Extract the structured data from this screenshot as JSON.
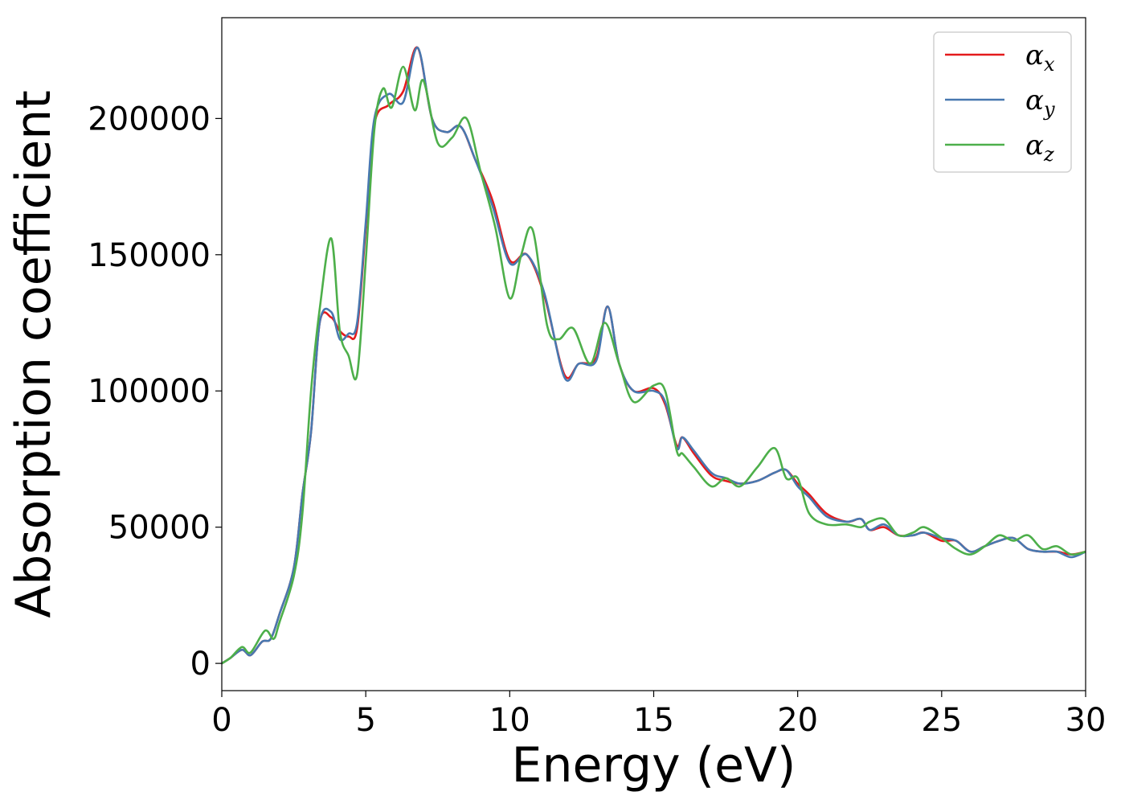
{
  "chart_data": {
    "type": "line",
    "xlabel": "Energy (eV)",
    "ylabel": "Absorption coefficient",
    "xlim": [
      0,
      30
    ],
    "ylim": [
      -10000,
      237000
    ],
    "xticks": [
      "0",
      "5",
      "10",
      "15",
      "20",
      "25",
      "30"
    ],
    "yticks": [
      "0",
      "50000",
      "100000",
      "150000",
      "200000"
    ],
    "grid": false,
    "legend_position": "top-right",
    "series": [
      {
        "name": "α_x",
        "base": "α",
        "sub": "x",
        "color": "#e41a1c",
        "x": [
          0,
          0.3,
          0.7,
          1.0,
          1.4,
          1.7,
          2.0,
          2.5,
          2.8,
          3.1,
          3.4,
          3.8,
          4.1,
          4.4,
          4.7,
          5.0,
          5.3,
          5.8,
          6.3,
          6.8,
          7.3,
          7.8,
          8.3,
          8.8,
          9.4,
          10.0,
          10.6,
          11.2,
          11.9,
          12.4,
          13.0,
          13.4,
          13.8,
          14.3,
          15.0,
          15.4,
          15.8,
          16.0,
          16.4,
          17.0,
          17.5,
          18.0,
          18.6,
          19.2,
          19.6,
          20.0,
          20.4,
          21.0,
          21.7,
          22.2,
          22.5,
          23.0,
          23.5,
          24.0,
          24.4,
          25.0,
          25.5,
          26.0,
          26.5,
          27.0,
          27.5,
          28.0,
          28.5,
          29.0,
          29.5,
          30.0
        ],
        "y": [
          0,
          2000,
          5000,
          3000,
          8000,
          9000,
          18000,
          35000,
          62000,
          85000,
          125000,
          127000,
          122000,
          120000,
          123000,
          160000,
          198000,
          205000,
          210000,
          226000,
          200000,
          195000,
          197000,
          185000,
          170000,
          148000,
          150000,
          135000,
          106000,
          110000,
          112000,
          131000,
          110000,
          100000,
          101000,
          95000,
          80000,
          83000,
          77000,
          69000,
          67000,
          66000,
          67000,
          70000,
          71000,
          66000,
          62000,
          55000,
          52000,
          53000,
          49000,
          50000,
          47000,
          47000,
          48000,
          45000,
          45000,
          41000,
          43000,
          45000,
          46000,
          42000,
          41000,
          41000,
          40000,
          41000
        ]
      },
      {
        "name": "α_y",
        "base": "α",
        "sub": "y",
        "color": "#4878b0",
        "x": [
          0,
          0.3,
          0.7,
          1.0,
          1.4,
          1.7,
          2.0,
          2.5,
          2.8,
          3.1,
          3.4,
          3.8,
          4.1,
          4.4,
          4.7,
          5.0,
          5.3,
          5.8,
          6.3,
          6.8,
          7.3,
          7.8,
          8.3,
          8.8,
          9.4,
          10.0,
          10.6,
          11.2,
          11.9,
          12.4,
          13.0,
          13.4,
          13.8,
          14.3,
          15.0,
          15.4,
          15.8,
          16.0,
          16.4,
          17.0,
          17.5,
          18.0,
          18.6,
          19.2,
          19.6,
          20.0,
          20.4,
          21.0,
          21.7,
          22.2,
          22.5,
          23.0,
          23.5,
          24.0,
          24.4,
          25.0,
          25.5,
          26.0,
          26.5,
          27.0,
          27.5,
          28.0,
          28.5,
          29.0,
          29.5,
          30.0
        ],
        "y": [
          0,
          2000,
          5000,
          3000,
          8000,
          9000,
          18000,
          35000,
          62000,
          85000,
          125000,
          129000,
          119000,
          121000,
          125000,
          162000,
          200000,
          209000,
          206000,
          226000,
          200000,
          195000,
          197000,
          185000,
          168000,
          147000,
          150000,
          136000,
          105000,
          110000,
          111000,
          131000,
          110000,
          100000,
          100000,
          96000,
          79000,
          83000,
          78000,
          70000,
          68000,
          66000,
          67000,
          70000,
          71000,
          65000,
          61000,
          54000,
          52000,
          53000,
          49000,
          51000,
          47000,
          47000,
          48000,
          46000,
          45000,
          41000,
          43000,
          45000,
          46000,
          42000,
          41000,
          41000,
          39000,
          41000
        ]
      },
      {
        "name": "α_z",
        "base": "α",
        "sub": "z",
        "color": "#4daf4a",
        "x": [
          0,
          0.3,
          0.7,
          1.0,
          1.5,
          1.8,
          2.0,
          2.5,
          2.8,
          3.1,
          3.4,
          3.8,
          4.1,
          4.4,
          4.7,
          5.0,
          5.3,
          5.6,
          5.9,
          6.3,
          6.7,
          7.0,
          7.5,
          8.0,
          8.5,
          9.0,
          9.5,
          10.0,
          10.4,
          10.8,
          11.3,
          11.7,
          12.2,
          12.8,
          13.3,
          13.8,
          14.3,
          15.0,
          15.4,
          15.8,
          16.0,
          16.4,
          17.0,
          17.5,
          18.0,
          18.6,
          19.2,
          19.6,
          20.0,
          20.4,
          21.0,
          21.7,
          22.2,
          22.5,
          23.0,
          23.5,
          24.0,
          24.4,
          25.0,
          25.5,
          26.0,
          26.5,
          27.0,
          27.5,
          28.0,
          28.5,
          29.0,
          29.5,
          30.0
        ],
        "y": [
          0,
          2000,
          6000,
          4000,
          12000,
          9000,
          15000,
          32000,
          55000,
          100000,
          130000,
          156000,
          122000,
          113000,
          106000,
          148000,
          196000,
          211000,
          204000,
          219000,
          203000,
          214000,
          191000,
          193000,
          200000,
          180000,
          160000,
          134000,
          150000,
          159000,
          124000,
          119000,
          123000,
          110000,
          125000,
          110000,
          96000,
          102000,
          100000,
          78000,
          77000,
          72000,
          65000,
          68000,
          65000,
          72000,
          79000,
          68000,
          68000,
          55000,
          51000,
          51000,
          50000,
          52000,
          53000,
          47000,
          48000,
          50000,
          46000,
          42000,
          40000,
          43000,
          47000,
          45000,
          47000,
          42000,
          43000,
          40000,
          41000
        ]
      }
    ]
  }
}
